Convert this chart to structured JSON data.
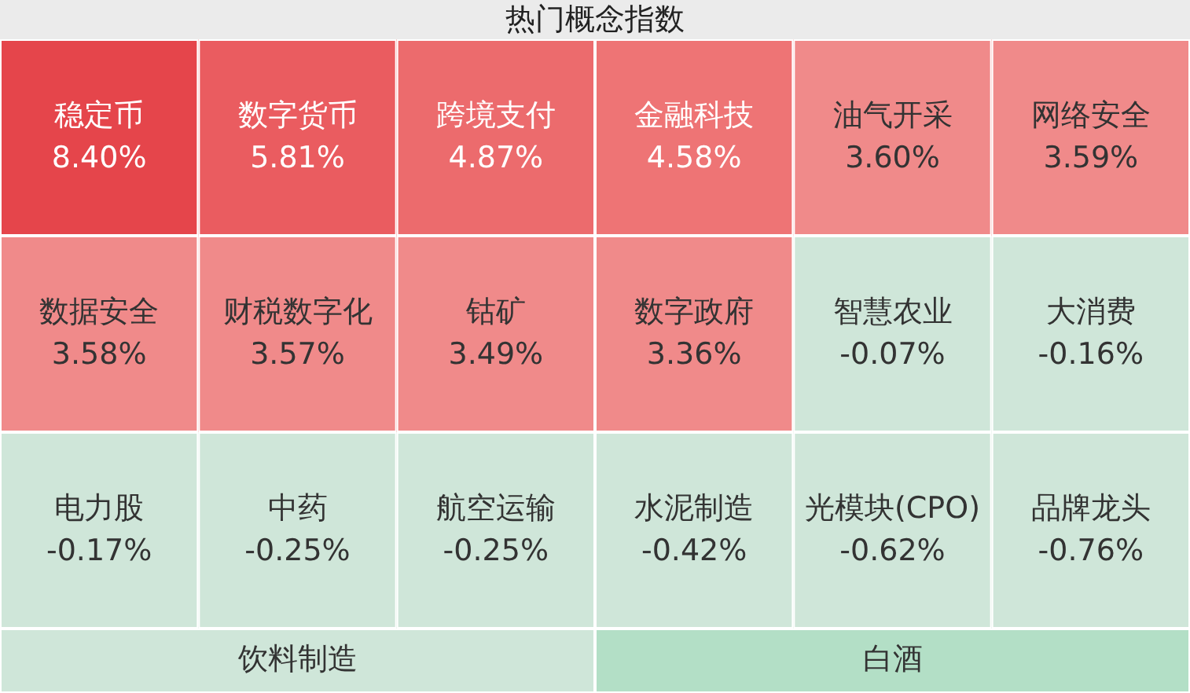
{
  "chart_data": {
    "type": "other",
    "title": "热门概念指数",
    "categories": [
      "稳定币",
      "数字货币",
      "跨境支付",
      "金融科技",
      "油气开采",
      "网络安全",
      "数据安全",
      "财税数字化",
      "钴矿",
      "数字政府",
      "智慧农业",
      "大消费",
      "电力股",
      "中药",
      "航空运输",
      "水泥制造",
      "光模块(CPO)",
      "品牌龙头",
      "饮料制造",
      "白酒"
    ],
    "values": [
      8.4,
      5.81,
      4.87,
      4.58,
      3.6,
      3.59,
      3.58,
      3.57,
      3.49,
      3.36,
      -0.07,
      -0.16,
      -0.17,
      -0.25,
      -0.25,
      -0.42,
      -0.62,
      -0.76,
      null,
      null
    ],
    "value_labels": [
      "8.40%",
      "5.81%",
      "4.87%",
      "4.58%",
      "3.60%",
      "3.59%",
      "3.58%",
      "3.57%",
      "3.49%",
      "3.36%",
      "-0.07%",
      "-0.16%",
      "-0.17%",
      "-0.25%",
      "-0.25%",
      "-0.42%",
      "-0.62%",
      "-0.76%",
      null,
      null
    ],
    "colors": [
      "#e5454b",
      "#ea5c60",
      "#ec6b6d",
      "#ee7475",
      "#f08a8a",
      "#f08a8a",
      "#f08a8a",
      "#f08a8a",
      "#f08a8a",
      "#f08a8a",
      "#cfe6d9",
      "#cfe6d9",
      "#cfe6d9",
      "#cfe6d9",
      "#cfe6d9",
      "#cfe6d9",
      "#cfe6d9",
      "#cfe6d9",
      "#cfe6d9",
      "#b3dfc6"
    ]
  }
}
